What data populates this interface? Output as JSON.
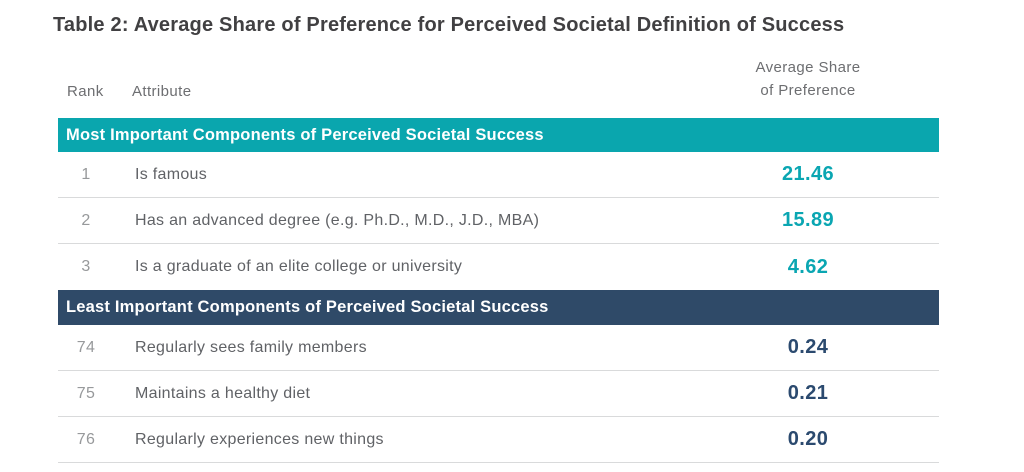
{
  "title": "Table 2: Average Share of Preference for Perceived Societal Definition of Success",
  "columns": {
    "rank": "Rank",
    "attribute": "Attribute",
    "value_line1": "Average Share",
    "value_line2": "of Preference"
  },
  "colors": {
    "teal_band": "#0aa6ae",
    "navy_band": "#2f4a68",
    "teal_value_text": "#0aa6b2",
    "navy_value_text": "#2b4a6f",
    "title_text": "#414042",
    "divider": "#d9dadb"
  },
  "sections": [
    {
      "header": "Most Important Components of Perceived Societal Success",
      "theme": "teal",
      "rows": [
        {
          "rank": "1",
          "attribute": "Is famous",
          "value": "21.46"
        },
        {
          "rank": "2",
          "attribute": "Has an advanced degree (e.g. Ph.D., M.D., J.D., MBA)",
          "value": "15.89"
        },
        {
          "rank": "3",
          "attribute": "Is a graduate of an elite college or university",
          "value": "4.62"
        }
      ]
    },
    {
      "header": "Least Important Components of Perceived Societal Success",
      "theme": "navy",
      "rows": [
        {
          "rank": "74",
          "attribute": "Regularly sees family members",
          "value": "0.24"
        },
        {
          "rank": "75",
          "attribute": "Maintains a healthy diet",
          "value": "0.21"
        },
        {
          "rank": "76",
          "attribute": "Regularly experiences new things",
          "value": "0.20"
        }
      ]
    }
  ],
  "chart_data": {
    "type": "table",
    "title": "Table 2: Average Share of Preference for Perceived Societal Definition of Success",
    "columns": [
      "Rank",
      "Attribute",
      "Average Share of Preference"
    ],
    "groups": [
      {
        "group_label": "Most Important Components of Perceived Societal Success",
        "rows": [
          [
            1,
            "Is famous",
            21.46
          ],
          [
            2,
            "Has an advanced degree (e.g. Ph.D., M.D., J.D., MBA)",
            15.89
          ],
          [
            3,
            "Is a graduate of an elite college or university",
            4.62
          ]
        ]
      },
      {
        "group_label": "Least Important Components of Perceived Societal Success",
        "rows": [
          [
            74,
            "Regularly sees family members",
            0.24
          ],
          [
            75,
            "Maintains a healthy diet",
            0.21
          ],
          [
            76,
            "Regularly experiences new things",
            0.2
          ]
        ]
      }
    ]
  }
}
